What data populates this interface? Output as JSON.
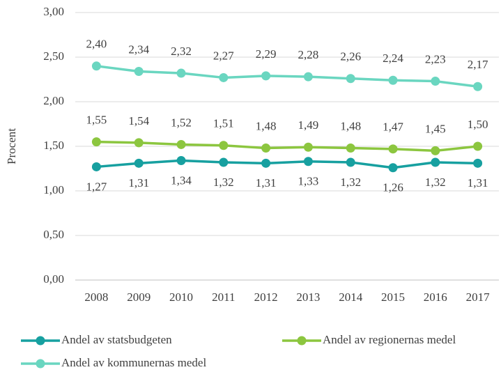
{
  "chart_data": {
    "type": "line",
    "y_label": "Procent",
    "categories": [
      "2008",
      "2009",
      "2010",
      "2011",
      "2012",
      "2013",
      "2014",
      "2015",
      "2016",
      "2017"
    ],
    "series": [
      {
        "name": "Andel av statsbudgeten",
        "color": "#17a0a0",
        "values": [
          1.27,
          1.31,
          1.34,
          1.32,
          1.31,
          1.33,
          1.32,
          1.26,
          1.32,
          1.31
        ],
        "value_labels": [
          "1,27",
          "1,31",
          "1,34",
          "1,32",
          "1,31",
          "1,33",
          "1,32",
          "1,26",
          "1,32",
          "1,31"
        ]
      },
      {
        "name": "Andel av regionernas medel",
        "color": "#8cc63f",
        "values": [
          1.55,
          1.54,
          1.52,
          1.51,
          1.48,
          1.49,
          1.48,
          1.47,
          1.45,
          1.5
        ],
        "value_labels": [
          "1,55",
          "1,54",
          "1,52",
          "1,51",
          "1,48",
          "1,49",
          "1,48",
          "1,47",
          "1,45",
          "1,50"
        ]
      },
      {
        "name": "Andel av kommunernas medel",
        "color": "#6ad6c0",
        "values": [
          2.4,
          2.34,
          2.32,
          2.27,
          2.29,
          2.28,
          2.26,
          2.24,
          2.23,
          2.17
        ],
        "value_labels": [
          "2,40",
          "2,34",
          "2,32",
          "2,27",
          "2,29",
          "2,28",
          "2,26",
          "2,24",
          "2,23",
          "2,17"
        ]
      }
    ],
    "ylim": [
      0,
      3
    ],
    "yticks": [
      {
        "value": 0,
        "label": "0,00"
      },
      {
        "value": 0.5,
        "label": "0,50"
      },
      {
        "value": 1,
        "label": "1,00"
      },
      {
        "value": 1.5,
        "label": "1,50"
      },
      {
        "value": 2,
        "label": "2,00"
      },
      {
        "value": 2.5,
        "label": "2,50"
      },
      {
        "value": 3,
        "label": "3,00"
      }
    ],
    "grid": true,
    "legend": "bottom"
  }
}
